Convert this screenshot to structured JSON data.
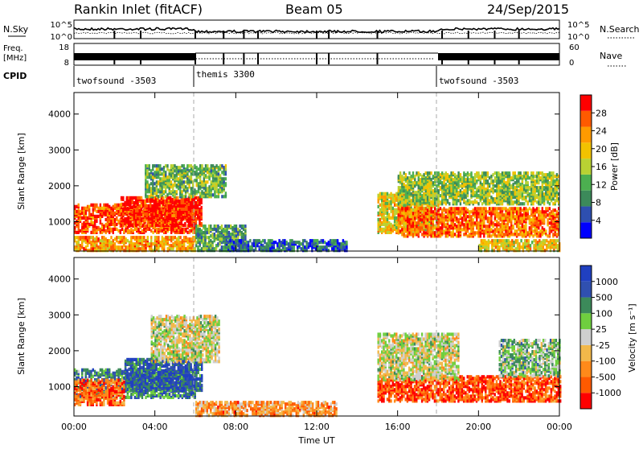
{
  "header": {
    "station": "Rankin Inlet (fitACF)",
    "beam": "Beam 05",
    "date": "24/Sep/2015"
  },
  "noise_panel": {
    "left_label": "N.Sky",
    "right_label": "N.Search",
    "left_ticks": [
      "10^5",
      "10^0"
    ],
    "right_ticks": [
      "10^5",
      "10^0"
    ]
  },
  "freq_panel": {
    "left_label_line1": "Freq.",
    "left_label_line2": "[MHz]",
    "left_ticks": [
      "18",
      "8"
    ],
    "right_label": "Nave",
    "right_ticks": [
      "60",
      "0"
    ]
  },
  "cpid": {
    "label": "CPID",
    "segments": [
      {
        "name": "twofsound -3503",
        "start_h": 0,
        "end_h": 6
      },
      {
        "name": "themis 3300",
        "start_h": 6,
        "end_h": 18
      },
      {
        "name": "twofsound -3503",
        "start_h": 18,
        "end_h": 24
      }
    ]
  },
  "colors": {
    "power_scale": [
      "#0000ff",
      "#2e4fb0",
      "#3c8a5a",
      "#4caf50",
      "#b9d233",
      "#f2c200",
      "#ff9a00",
      "#ff5a00",
      "#ff0000"
    ],
    "velocity_scale": [
      "#ff0000",
      "#ff5a00",
      "#ff8a1a",
      "#f2b84a",
      "#cfcfcf",
      "#6fcf3f",
      "#3c8a5a",
      "#3050b0",
      "#2040c0"
    ]
  },
  "chart_data": [
    {
      "type": "heatmap",
      "name": "power",
      "ylabel": "Slant Range [km]",
      "y_ticks": [
        "1000",
        "2000",
        "3000",
        "4000"
      ],
      "yrange_km": [
        180,
        4600
      ],
      "xrange_h": [
        0,
        24
      ],
      "colorbar": {
        "label": "Power [dB]",
        "ticks": [
          "4",
          "8",
          "12",
          "16",
          "20",
          "24",
          "28"
        ],
        "range": [
          0,
          32
        ]
      },
      "echo_regions": [
        {
          "t0": 0.0,
          "t1": 6.0,
          "r0": 700,
          "r1": 1500,
          "level": 0.85
        },
        {
          "t0": 2.3,
          "t1": 6.3,
          "r0": 900,
          "r1": 1700,
          "level": 0.95
        },
        {
          "t0": 0.0,
          "t1": 6.0,
          "r0": 200,
          "r1": 600,
          "level": 0.7
        },
        {
          "t0": 3.5,
          "t1": 7.5,
          "r0": 1700,
          "r1": 2600,
          "level": 0.4
        },
        {
          "t0": 6.0,
          "t1": 8.5,
          "r0": 200,
          "r1": 900,
          "level": 0.35
        },
        {
          "t0": 7.5,
          "t1": 13.5,
          "r0": 200,
          "r1": 500,
          "level": 0.2
        },
        {
          "t0": 15.0,
          "t1": 18.0,
          "r0": 700,
          "r1": 1800,
          "level": 0.6
        },
        {
          "t0": 16.0,
          "t1": 24.0,
          "r0": 600,
          "r1": 1400,
          "level": 0.8
        },
        {
          "t0": 16.0,
          "t1": 24.0,
          "r0": 1500,
          "r1": 2400,
          "level": 0.45
        },
        {
          "t0": 20.0,
          "t1": 24.0,
          "r0": 200,
          "r1": 500,
          "level": 0.6
        }
      ]
    },
    {
      "type": "heatmap",
      "name": "velocity",
      "ylabel": "Slant Range [km]",
      "y_ticks": [
        "1000",
        "2000",
        "3000",
        "4000"
      ],
      "yrange_km": [
        180,
        4600
      ],
      "xrange_h": [
        0,
        24
      ],
      "xlabel": "Time UT",
      "x_ticks": [
        "00:00",
        "04:00",
        "08:00",
        "12:00",
        "16:00",
        "20:00",
        "00:00"
      ],
      "colorbar": {
        "label": "Velocity [m s⁻¹]",
        "ticks": [
          "-1000",
          "-500",
          "-100",
          "-25",
          "25",
          "100",
          "500",
          "1000"
        ],
        "range": [
          -1200,
          1200
        ]
      },
      "echo_regions": [
        {
          "t0": 0.0,
          "t1": 6.0,
          "r0": 700,
          "r1": 1500,
          "level": 0.75
        },
        {
          "t0": 2.5,
          "t1": 6.3,
          "r0": 900,
          "r1": 1800,
          "level": 0.85
        },
        {
          "t0": 0.0,
          "t1": 2.5,
          "r0": 500,
          "r1": 1200,
          "level": 0.2
        },
        {
          "t0": 3.8,
          "t1": 7.2,
          "r0": 1700,
          "r1": 3000,
          "level": 0.5
        },
        {
          "t0": 6.0,
          "t1": 13.0,
          "r0": 200,
          "r1": 600,
          "level": 0.3
        },
        {
          "t0": 15.0,
          "t1": 24.0,
          "r0": 600,
          "r1": 1300,
          "level": 0.15
        },
        {
          "t0": 15.0,
          "t1": 19.0,
          "r0": 1200,
          "r1": 2500,
          "level": 0.5
        },
        {
          "t0": 21.0,
          "t1": 24.0,
          "r0": 1300,
          "r1": 2300,
          "level": 0.6
        }
      ]
    }
  ]
}
